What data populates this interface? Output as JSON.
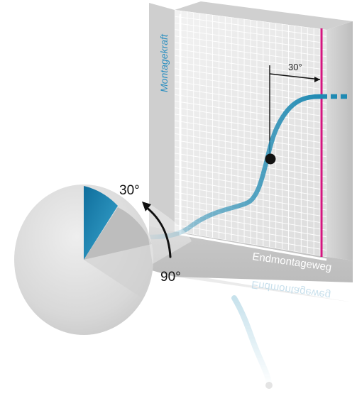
{
  "diagram": {
    "y_axis_label": "Montagekraft",
    "x_axis_label": "Endmontageweg",
    "x_axis_label_reflection": "Endmontageweg",
    "curve_annotation": "30°",
    "rotation_start_label": "30°",
    "rotation_end_label": "90°"
  },
  "colors": {
    "curve": "#1f8ab3",
    "axis_label": "#2b8fc0",
    "limit_line": "#d4157f",
    "panel_face": "#e9e9e9",
    "panel_side": "#c8c8c8",
    "grid": "#ffffff",
    "disc": "#d6d6d6",
    "wedge_blue": "#1a7fae",
    "wedge_grey": "#b9b9b9",
    "arrow": "#111111",
    "marker": "#111111"
  },
  "icons": {
    "rotation_arrow": "curved-arrow-up-icon",
    "operating_point": "dot-marker-icon"
  }
}
